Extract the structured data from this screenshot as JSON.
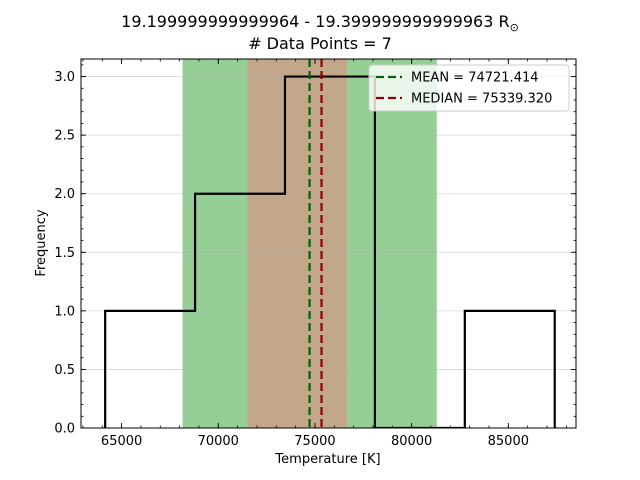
{
  "chart_data": {
    "type": "bar",
    "title_line1": "19.199999999999964 - 19.399999999999963 R",
    "title_sun_symbol": "⊙",
    "title_line2": "# Data Points = 7",
    "xlabel": "Temperature [K]",
    "ylabel": "Frequency",
    "xlim": [
      62900,
      88500
    ],
    "ylim": [
      0,
      3.15
    ],
    "xticks": [
      65000,
      70000,
      75000,
      80000,
      85000
    ],
    "xtick_labels": [
      "65000",
      "70000",
      "75000",
      "80000",
      "85000"
    ],
    "yticks": [
      0.0,
      0.5,
      1.0,
      1.5,
      2.0,
      2.5,
      3.0
    ],
    "ytick_labels": [
      "0.0",
      "0.5",
      "1.0",
      "1.5",
      "2.0",
      "2.5",
      "3.0"
    ],
    "grid": "horizontal",
    "bin_edges": [
      64150,
      68800,
      73450,
      78100,
      82750,
      87400
    ],
    "counts": [
      1,
      2,
      3,
      0,
      1
    ],
    "histtype": "step",
    "shaded_regions": [
      {
        "name": "outer",
        "x0": 68150,
        "x1": 81300,
        "color": "#95cf95"
      },
      {
        "name": "inner",
        "x0": 71500,
        "x1": 76650,
        "color": "#c2a78b"
      }
    ],
    "mean": 74721.414,
    "median": 75339.32,
    "legend": {
      "placement": "top-right",
      "entries": [
        {
          "label": "MEAN = 74721.414",
          "color": "#006400"
        },
        {
          "label": "MEDIAN = 75339.320",
          "color": "#8b0000"
        }
      ]
    }
  }
}
